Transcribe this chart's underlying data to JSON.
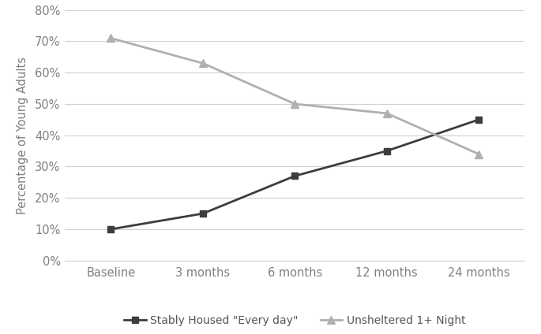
{
  "x_labels": [
    "Baseline",
    "3 months",
    "6 months",
    "12 months",
    "24 months"
  ],
  "x_positions": [
    0,
    1,
    2,
    3,
    4
  ],
  "stably_housed": [
    10,
    15,
    27,
    35,
    45
  ],
  "unsheltered": [
    71,
    63,
    50,
    47,
    34
  ],
  "stably_housed_color": "#3d3d3d",
  "unsheltered_color": "#b0b0b0",
  "ylabel": "Percentage of Young Adults",
  "ylim": [
    0,
    80
  ],
  "yticks": [
    0,
    10,
    20,
    30,
    40,
    50,
    60,
    70,
    80
  ],
  "legend_stably": "Stably Housed \"Every day\"",
  "legend_unsheltered": "Unsheltered 1+ Night",
  "background_color": "#ffffff",
  "grid_color": "#d0d0d0",
  "tick_label_color": "#808080",
  "xlabel_color": "#808080"
}
